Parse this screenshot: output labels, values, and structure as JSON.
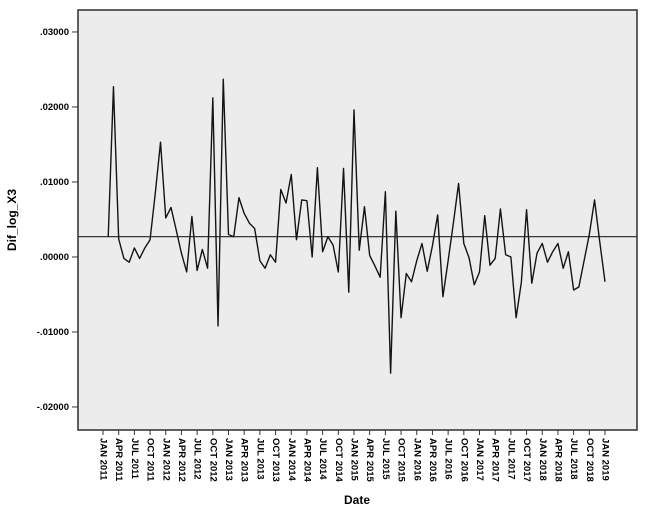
{
  "chart_data": {
    "type": "line",
    "title": "",
    "xlabel": "Date",
    "ylabel": "Dif_log_X3",
    "grid": false,
    "legend": "none",
    "plot_bg_color": "#ececec",
    "line_color": "#141414",
    "ylim": [
      -0.02307,
      0.03293
    ],
    "y_ticks": [
      0.03,
      0.02,
      0.01,
      0.0,
      -0.01,
      -0.02
    ],
    "y_tick_labels": [
      ".03000",
      ".02000",
      ".01000",
      ".00000",
      "-.01000",
      "-.02000"
    ],
    "reference_line": 0.0027,
    "n_categories": 97,
    "first_category": "JAN 2011",
    "last_category": "JAN 2019",
    "tick_every_n_categories": 3,
    "x_tick_labels": [
      "JAN 2011",
      "APR 2011",
      "JUL 2011",
      "OCT 2011",
      "JAN 2012",
      "APR 2012",
      "JUL 2012",
      "OCT 2012",
      "JAN 2013",
      "APR 2013",
      "JUL 2013",
      "OCT 2013",
      "JAN 2014",
      "APR 2014",
      "JUL 2014",
      "OCT 2014",
      "JAN 2015",
      "APR 2015",
      "JUL 2015",
      "OCT 2015",
      "JAN 2016",
      "APR 2016",
      "JUL 2016",
      "OCT 2016",
      "JAN 2017",
      "APR 2017",
      "JUL 2017",
      "OCT 2017",
      "JAN 2018",
      "APR 2018",
      "JUL 2018",
      "OCT 2018",
      "JAN 2019"
    ],
    "series": [
      {
        "name": "Dif_log_X3",
        "start_month": "FEB 2011",
        "end_month": "JAN 2019",
        "data_start_category_index": 1,
        "values": [
          0.0027,
          0.0227,
          0.0024,
          -0.0002,
          -0.0007,
          0.0012,
          -0.0002,
          0.0012,
          0.0023,
          0.0085,
          0.0153,
          0.0052,
          0.0066,
          0.0036,
          0.0005,
          -0.002,
          0.0054,
          -0.0018,
          0.001,
          -0.0015,
          0.0212,
          -0.0092,
          0.0237,
          0.003,
          0.0027,
          0.0079,
          0.0058,
          0.0045,
          0.0038,
          -0.0005,
          -0.0015,
          0.0003,
          -0.0007,
          0.009,
          0.0072,
          0.011,
          0.0023,
          0.0076,
          0.0075,
          0.0,
          0.0119,
          0.0007,
          0.0027,
          0.0016,
          -0.002,
          0.0118,
          -0.0047,
          0.0196,
          0.0009,
          0.0067,
          0.0002,
          -0.0012,
          -0.0027,
          0.0087,
          -0.0155,
          0.0061,
          -0.0081,
          -0.0022,
          -0.0033,
          -0.0005,
          0.0018,
          -0.0019,
          0.0015,
          0.0056,
          -0.0053,
          -0.0005,
          0.0045,
          0.0098,
          0.0018,
          -0.0001,
          -0.0037,
          -0.002,
          0.0055,
          -0.0011,
          -0.0002,
          0.0064,
          0.0003,
          0.0,
          -0.0081,
          -0.0034,
          0.0063,
          -0.0035,
          0.0005,
          0.0018,
          -0.0007,
          0.0007,
          0.0018,
          -0.0015,
          0.0007,
          -0.0044,
          -0.004,
          -0.0005,
          0.003,
          0.0076,
          0.002,
          -0.0033
        ]
      }
    ]
  }
}
